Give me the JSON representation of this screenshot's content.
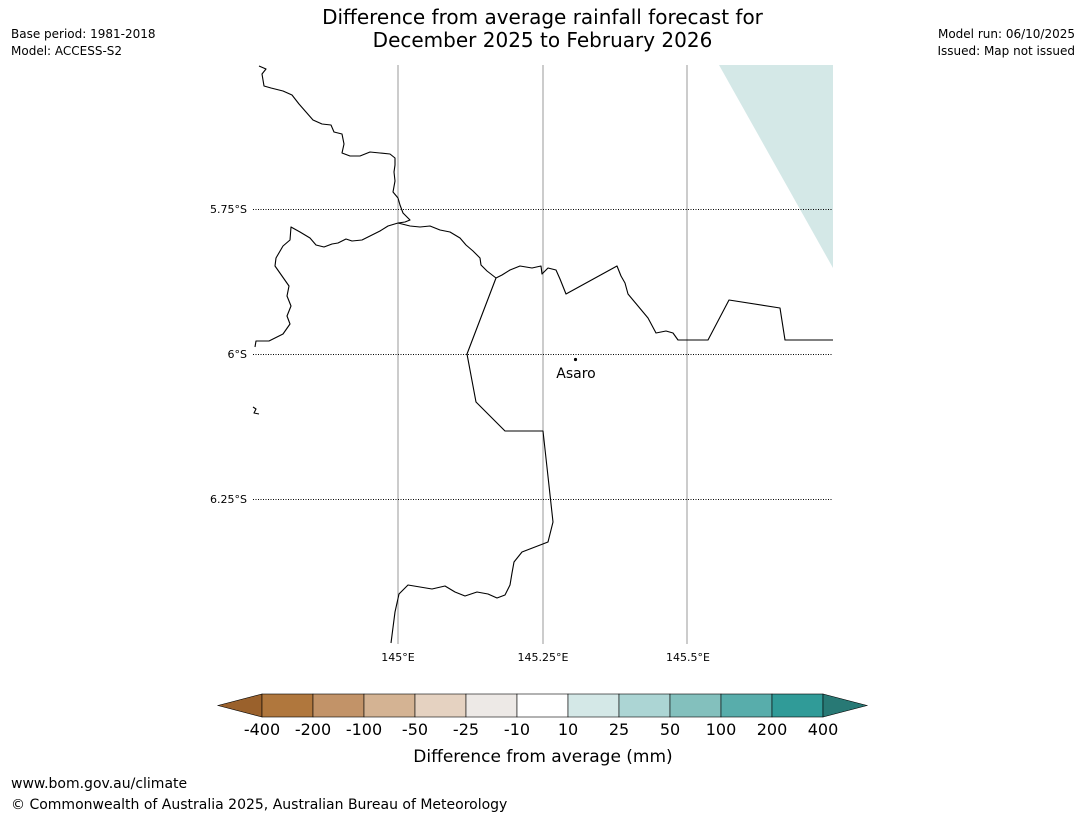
{
  "title": {
    "line1": "Difference from average rainfall forecast for",
    "line2": "December 2025 to February 2026"
  },
  "meta_left": {
    "base_period": "Base period: 1981-2018",
    "model": "Model: ACCESS-S2"
  },
  "meta_right": {
    "model_run": "Model run: 06/10/2025",
    "issued": "Issued: Map not issued"
  },
  "map": {
    "latitude_labels": [
      "5.75°S",
      "6°S",
      "6.25°S"
    ],
    "longitude_labels": [
      "145°E",
      "145.25°E",
      "145.5°E"
    ],
    "place": {
      "name": "Asaro"
    },
    "forecast_fill_color": "#d4e8e7",
    "grid_color": "#999999",
    "coastline_color": "#000000"
  },
  "legend": {
    "title": "Difference from average (mm)",
    "ticks": [
      "-400",
      "-200",
      "-100",
      "-50",
      "-25",
      "-10",
      "10",
      "25",
      "50",
      "100",
      "200",
      "400"
    ],
    "colors": [
      "#9a612c",
      "#b0773d",
      "#c29368",
      "#d4b393",
      "#e5d2c1",
      "#ede9e6",
      "#ffffff",
      "#d4e8e7",
      "#acd5d4",
      "#83c0bd",
      "#58adab",
      "#309b98",
      "#287975"
    ]
  },
  "footer": {
    "website": "www.bom.gov.au/climate",
    "copyright": "© Commonwealth of Australia 2025, Australian Bureau of Meteorology"
  }
}
